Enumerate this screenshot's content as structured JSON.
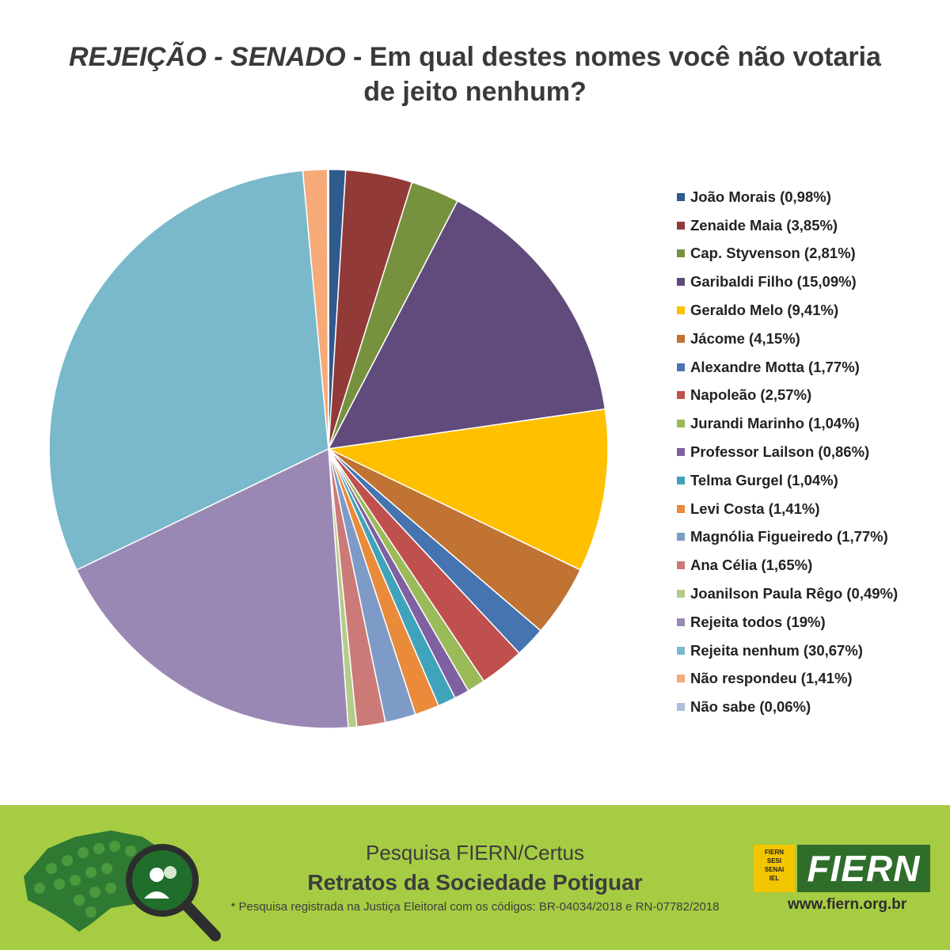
{
  "title": {
    "italic_part": "REJEIÇÃO - SENADO",
    "rest_line1": " - Em qual destes nomes você não votaria",
    "line2": "de jeito nenhum?"
  },
  "chart_data": {
    "type": "pie",
    "title": "REJEIÇÃO - SENADO - Em qual destes nomes você não votaria de jeito nenhum?",
    "legend_position": "right",
    "start": "top",
    "direction": "clockwise",
    "slices": [
      {
        "label": "João Morais (0,98%)",
        "value": 0.98,
        "color": "#2e5a8e"
      },
      {
        "label": "Zenaide Maia (3,85%)",
        "value": 3.85,
        "color": "#923a38"
      },
      {
        "label": "Cap. Styvenson (2,81%)",
        "value": 2.81,
        "color": "#77923f"
      },
      {
        "label": "Garibaldi Filho (15,09%)",
        "value": 15.09,
        "color": "#604b7c"
      },
      {
        "label": "Geraldo Melo (9,41%)",
        "value": 9.41,
        "color": "#ffc000"
      },
      {
        "label": "Jácome (4,15%)",
        "value": 4.15,
        "color": "#c07333"
      },
      {
        "label": "Alexandre Motta (1,77%)",
        "value": 1.77,
        "color": "#4674b1"
      },
      {
        "label": "Napoleão (2,57%)",
        "value": 2.57,
        "color": "#c0504d"
      },
      {
        "label": "Jurandi Marinho (1,04%)",
        "value": 1.04,
        "color": "#9bbb59"
      },
      {
        "label": "Professor Lailson (0,86%)",
        "value": 0.86,
        "color": "#7f60a0"
      },
      {
        "label": "Telma Gurgel (1,04%)",
        "value": 1.04,
        "color": "#3fa3bc"
      },
      {
        "label": "Levi Costa (1,41%)",
        "value": 1.41,
        "color": "#e98b3a"
      },
      {
        "label": "Magnólia Figueiredo (1,77%)",
        "value": 1.77,
        "color": "#7e9bc8"
      },
      {
        "label": "Ana Célia (1,65%)",
        "value": 1.65,
        "color": "#cc7a78"
      },
      {
        "label": "Joanilson Paula Rêgo (0,49%)",
        "value": 0.49,
        "color": "#b3cc89"
      },
      {
        "label": "Rejeita todos (19%)",
        "value": 19,
        "color": "#9a88b4"
      },
      {
        "label": "Rejeita nenhum (30,67%)",
        "value": 30.67,
        "color": "#7ab8cc"
      },
      {
        "label": "Não respondeu (1,41%)",
        "value": 1.41,
        "color": "#f5aa78"
      },
      {
        "label": "Não sabe (0,06%)",
        "value": 0.06,
        "color": "#aebdde"
      }
    ]
  },
  "footer": {
    "background": "#a6cc43",
    "survey": "Pesquisa FIERN/Certus",
    "series_title": "Retratos da Sociedade Potiguar",
    "registration_note": "* Pesquisa registrada na Justiça Eleitoral com os códigos: BR-04034/2018 e RN-07782/2018",
    "logo_small": [
      "FIERN",
      "SESI",
      "SENAI",
      "IEL"
    ],
    "logo_main": "FIERN",
    "website": "www.fiern.org.br"
  }
}
